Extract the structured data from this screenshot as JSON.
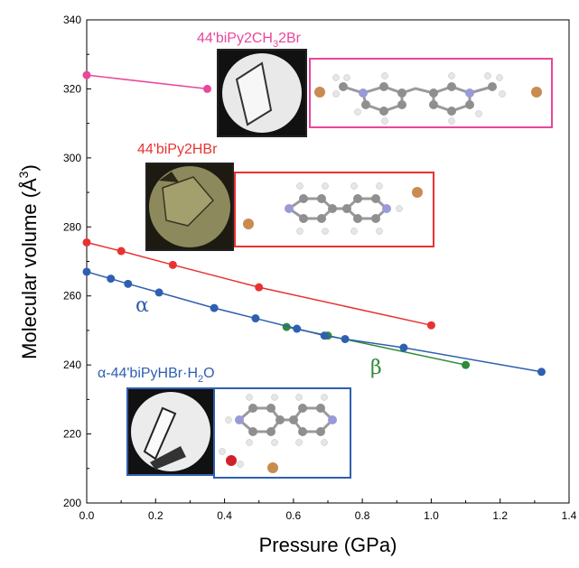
{
  "chart_data": {
    "type": "scatter",
    "title": "",
    "xlabel": "Pressure (GPa)",
    "ylabel": "Molecular volume (Å",
    "ylabel_sup": "3",
    "ylabel_end": ")",
    "xlim": [
      0,
      1.4
    ],
    "ylim": [
      200,
      340
    ],
    "x_ticks": [
      0.0,
      0.2,
      0.4,
      0.6,
      0.8,
      1.0,
      1.2,
      1.4
    ],
    "x_tick_labels": [
      "0.0",
      "0.2",
      "0.4",
      "0.6",
      "0.8",
      "1.0",
      "1.2",
      "1.4"
    ],
    "y_ticks": [
      200,
      220,
      240,
      260,
      280,
      300,
      320,
      340
    ],
    "y_tick_labels": [
      "200",
      "220",
      "240",
      "260",
      "280",
      "300",
      "320",
      "340"
    ],
    "grid": false,
    "series": [
      {
        "key": "ch3",
        "color": "#e8479b",
        "x": [
          0.0,
          0.35
        ],
        "y": [
          324.0,
          320.0
        ]
      },
      {
        "key": "hbr",
        "color": "#e83232",
        "x": [
          0.0,
          0.1,
          0.25,
          0.5,
          1.0
        ],
        "y": [
          275.5,
          273.0,
          269.0,
          262.5,
          251.5
        ]
      },
      {
        "key": "beta",
        "color": "#2e8b3a",
        "x": [
          0.58,
          0.7,
          1.1
        ],
        "y": [
          251.0,
          248.5,
          240.0
        ]
      },
      {
        "key": "alpha",
        "color": "#2f5fb0",
        "x": [
          0.0,
          0.07,
          0.12,
          0.21,
          0.37,
          0.49,
          0.61,
          0.69,
          0.75,
          0.92,
          1.32
        ],
        "y": [
          267.0,
          265.0,
          263.5,
          261.0,
          256.5,
          253.5,
          250.5,
          248.5,
          247.5,
          245.0,
          238.0
        ]
      }
    ],
    "annotations": {
      "ch3_label": "44'biPy2CH",
      "ch3_sub": "3",
      "ch3_end": "2Br",
      "hbr_label": "44'biPy2HBr",
      "alpha_label": "α",
      "beta_label": "β",
      "hydrate_label": "α-44'biPyHBr·H",
      "hydrate_sub": "2",
      "hydrate_end": "O"
    },
    "colors": {
      "ch3": "#e8479b",
      "hbr": "#e83232",
      "alpha": "#2f5fb0",
      "beta": "#2e8b3a",
      "atom_carbon": "#8f8f8f",
      "atom_hydrogen": "#e6e6e6",
      "atom_nitrogen": "#9a9ad8",
      "atom_bromine": "#c98b4f",
      "atom_oxygen": "#d0202a"
    }
  }
}
